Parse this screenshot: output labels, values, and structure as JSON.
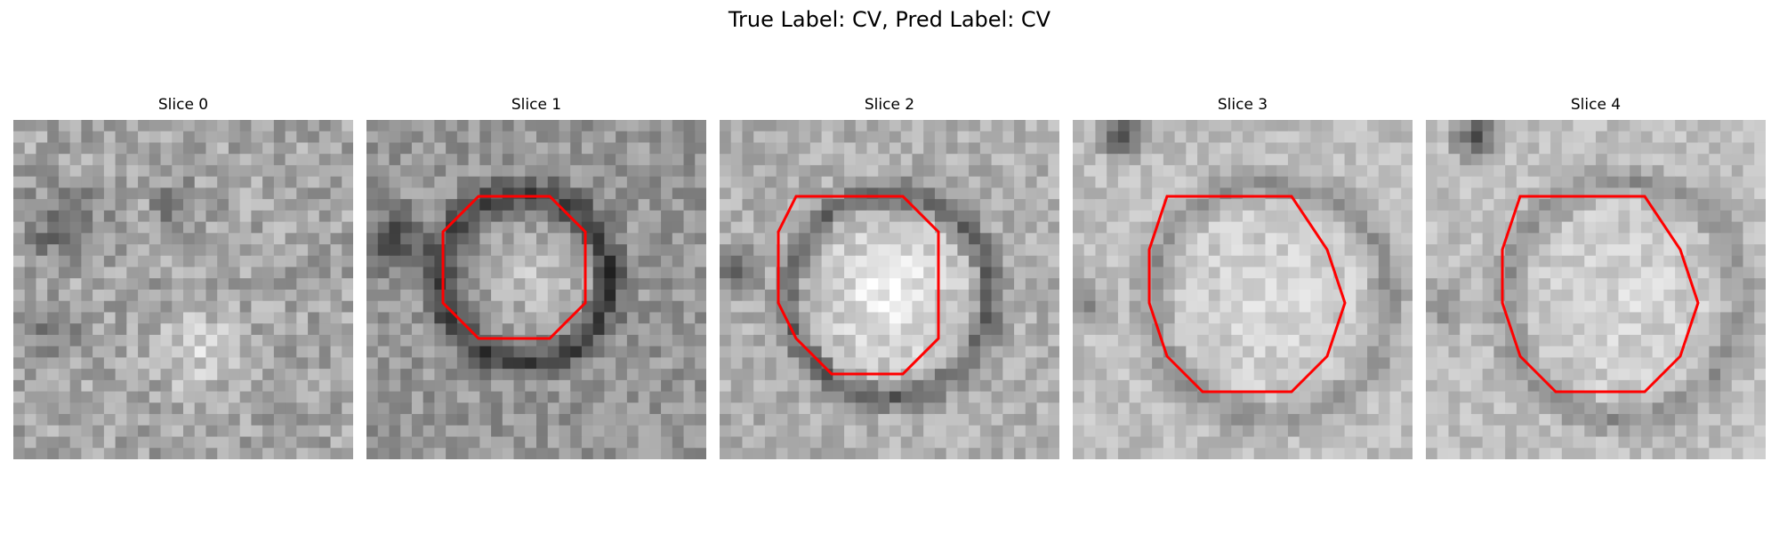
{
  "title": "True Label: CV, Pred Label: CV",
  "colors": {
    "contour": "#ff0000",
    "background": "#ffffff"
  },
  "panels": [
    {
      "label": "Slice 0"
    },
    {
      "label": "Slice 1"
    },
    {
      "label": "Slice 2"
    },
    {
      "label": "Slice 3"
    },
    {
      "label": "Slice 4"
    }
  ]
}
